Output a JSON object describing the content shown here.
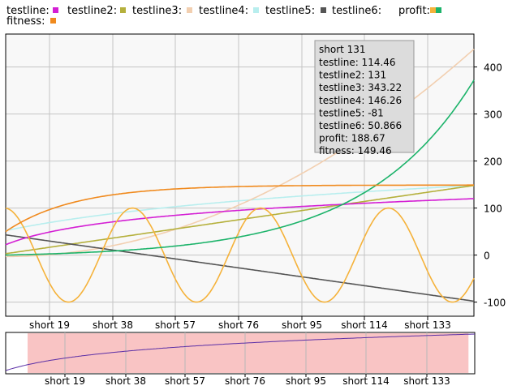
{
  "chart_data": {
    "type": "line",
    "legend_position": "top",
    "grid": true,
    "x_categories": [
      "short 19",
      "short 38",
      "short 57",
      "short 76",
      "short 95",
      "short 114",
      "short 133"
    ],
    "x_range": [
      0,
      150
    ],
    "y_axis_side": "right",
    "ylim": [
      -130,
      470
    ],
    "y_ticks": [
      -100,
      0,
      100,
      200,
      300,
      400
    ],
    "series": [
      {
        "name": "testline:",
        "color": "#d41fd4",
        "formula": "log",
        "start": 22,
        "end": 120,
        "scale": 10
      },
      {
        "name": "testline2:",
        "color": "#b5b03c",
        "formula": "linear",
        "start": 3,
        "end": 148
      },
      {
        "name": "testline3:",
        "color": "#f2cfb0",
        "formula": "quadratic",
        "start": -3,
        "end": 438
      },
      {
        "name": "testline4:",
        "color": "#b8eeee",
        "formula": "log",
        "start": 52,
        "end": 148,
        "scale": 3
      },
      {
        "name": "testline5:",
        "color": "#555555",
        "formula": "linear",
        "start": 43,
        "end": -98
      },
      {
        "name": "testline6:",
        "color": "#f5b23a",
        "formula": "sine",
        "amplitude": 100,
        "period": 41,
        "phase": 1.63
      },
      {
        "name": "profit:",
        "color": "#1cb36a",
        "formula": "exponential",
        "start": 0,
        "end": 372,
        "rate": 4.3
      },
      {
        "name": "fitness:",
        "color": "#f08a1e",
        "formula": "saturating",
        "start": 50,
        "end": 149,
        "tau": 22
      }
    ],
    "tooltip": {
      "title": "short 131",
      "rows": [
        "testline: 114.46",
        "testline2: 131",
        "testline3: 343.22",
        "testline4: 146.26",
        "testline5: -81",
        "testline6: 50.866",
        "profit: 188.67",
        "fitness: 149.46"
      ]
    },
    "navigator": {
      "x_categories": [
        "short 19",
        "short 38",
        "short 57",
        "short 76",
        "short 95",
        "short 114",
        "short 133"
      ],
      "selection_color": "#f9c4c4",
      "line_color": "#5a2ea6",
      "selection_range": [
        7,
        148
      ]
    }
  }
}
